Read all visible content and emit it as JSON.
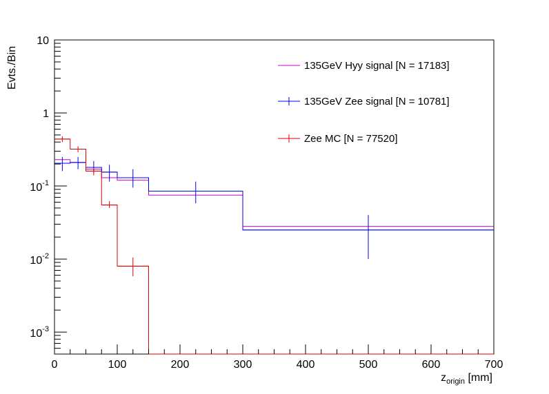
{
  "chart_data": {
    "type": "step-histogram",
    "title": "",
    "xlabel": {
      "main": "z",
      "sub": "origin",
      "unit": " [mm]"
    },
    "ylabel": "Evts./Bin",
    "xlim": [
      0,
      700
    ],
    "ylim": [
      0.0005,
      10
    ],
    "yscale": "log",
    "x_ticks": [
      "0",
      "100",
      "200",
      "300",
      "400",
      "500",
      "600",
      "700"
    ],
    "y_ticks": [
      {
        "value": 10,
        "mant": "10",
        "exp": ""
      },
      {
        "value": 1,
        "mant": "1",
        "exp": ""
      },
      {
        "value": 0.1,
        "mant": "10",
        "exp": "-1"
      },
      {
        "value": 0.01,
        "mant": "10",
        "exp": "-2"
      },
      {
        "value": 0.001,
        "mant": "10",
        "exp": "-3"
      }
    ],
    "series": [
      {
        "name": "135GeV Hyy signal [N = 17183]",
        "color": "#cc00cc",
        "edges": [
          0,
          25,
          50,
          75,
          100,
          150,
          300,
          700
        ],
        "values": [
          0.23,
          0.21,
          0.17,
          0.13,
          0.12,
          0.075,
          0.028
        ],
        "errors": []
      },
      {
        "name": "135GeV Zee signal [N = 10781]",
        "color": "#0000ee",
        "edges": [
          0,
          25,
          50,
          75,
          100,
          150,
          300,
          700
        ],
        "values": [
          0.205,
          0.21,
          0.18,
          0.155,
          0.13,
          0.085,
          0.025
        ],
        "errors": [
          [
            0.16,
            0.25
          ],
          [
            0.17,
            0.25
          ],
          [
            0.15,
            0.22
          ],
          [
            0.115,
            0.195
          ],
          [
            0.095,
            0.17
          ],
          [
            0.058,
            0.115
          ],
          [
            0.01,
            0.04
          ]
        ]
      },
      {
        "name": "Zee MC [N = 77520]",
        "color": "#dd0000",
        "edges": [
          0,
          25,
          50,
          75,
          100,
          150,
          300,
          700
        ],
        "values": [
          0.44,
          0.32,
          0.16,
          0.055,
          0.008,
          0.0005,
          0.0005
        ],
        "errors": [
          [
            0.4,
            0.48
          ],
          [
            0.29,
            0.35
          ],
          [
            0.14,
            0.18
          ],
          [
            0.05,
            0.062
          ],
          [
            0.0058,
            0.0105
          ],
          null,
          null
        ]
      }
    ],
    "legend_position": "top-right"
  }
}
